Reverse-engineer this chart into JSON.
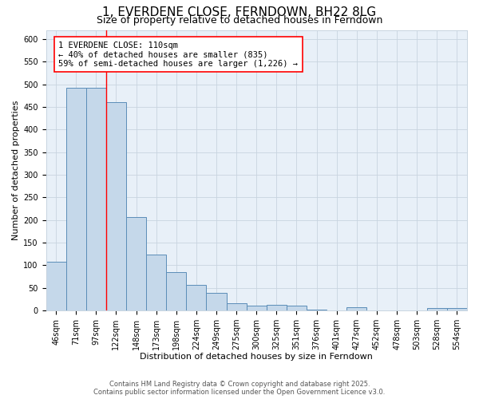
{
  "title": "1, EVERDENE CLOSE, FERNDOWN, BH22 8LG",
  "subtitle": "Size of property relative to detached houses in Ferndown",
  "xlabel": "Distribution of detached houses by size in Ferndown",
  "ylabel": "Number of detached properties",
  "categories": [
    "46sqm",
    "71sqm",
    "97sqm",
    "122sqm",
    "148sqm",
    "173sqm",
    "198sqm",
    "224sqm",
    "249sqm",
    "275sqm",
    "300sqm",
    "325sqm",
    "351sqm",
    "376sqm",
    "401sqm",
    "427sqm",
    "452sqm",
    "478sqm",
    "503sqm",
    "528sqm",
    "554sqm"
  ],
  "values": [
    107,
    492,
    492,
    460,
    207,
    124,
    84,
    57,
    39,
    16,
    10,
    13,
    10,
    2,
    0,
    7,
    0,
    0,
    0,
    5,
    6
  ],
  "bar_color": "#c5d8ea",
  "bar_edge_color": "#5b8db8",
  "red_line_x": 2.5,
  "annotation_text": "1 EVERDENE CLOSE: 110sqm\n← 40% of detached houses are smaller (835)\n59% of semi-detached houses are larger (1,226) →",
  "annotation_box_color": "white",
  "annotation_box_edge_color": "red",
  "ylim": [
    0,
    620
  ],
  "yticks": [
    0,
    50,
    100,
    150,
    200,
    250,
    300,
    350,
    400,
    450,
    500,
    550,
    600
  ],
  "grid_color": "#c8d4e0",
  "background_color": "#e8f0f8",
  "footer_line1": "Contains HM Land Registry data © Crown copyright and database right 2025.",
  "footer_line2": "Contains public sector information licensed under the Open Government Licence v3.0.",
  "title_fontsize": 11,
  "subtitle_fontsize": 9,
  "axis_label_fontsize": 8,
  "tick_fontsize": 7,
  "annotation_fontsize": 7.5,
  "footer_fontsize": 6
}
